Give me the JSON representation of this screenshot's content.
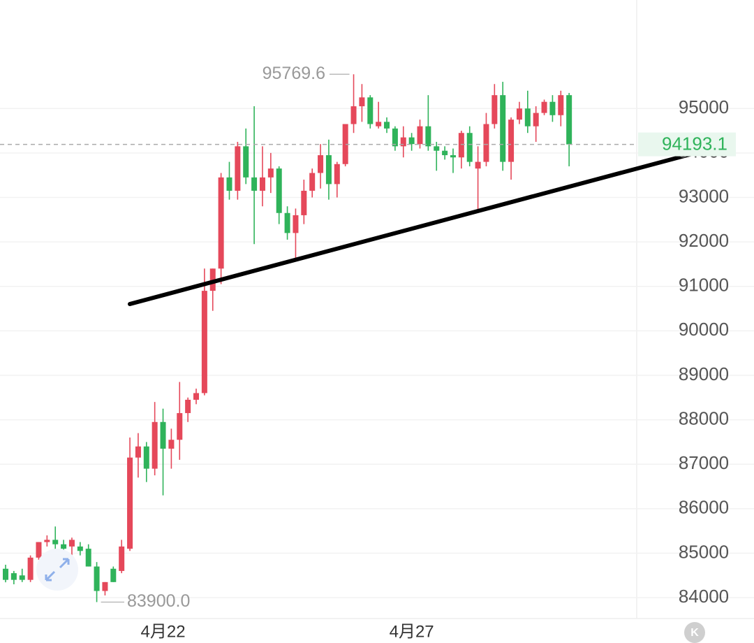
{
  "chart_data": {
    "type": "candlestick",
    "categories": [
      null,
      null,
      null,
      null,
      null,
      null,
      null,
      null,
      null,
      null,
      null,
      null,
      null,
      null,
      null,
      null,
      null,
      null,
      null,
      "4月22",
      null,
      null,
      null,
      null,
      null,
      null,
      null,
      null,
      null,
      null,
      null,
      null,
      null,
      null,
      null,
      null,
      null,
      null,
      null,
      null,
      null,
      null,
      null,
      null,
      null,
      null,
      null,
      null,
      null,
      "4月27",
      null,
      null,
      null,
      null,
      null,
      null,
      null,
      null,
      null,
      null,
      null,
      null,
      null,
      null,
      null,
      null,
      null,
      null,
      null
    ],
    "open": [
      84650,
      84550,
      84500,
      84400,
      84900,
      85250,
      85300,
      85200,
      85150,
      85150,
      85100,
      84700,
      84150,
      84650,
      84600,
      85100,
      87150,
      87400,
      86900,
      87950,
      87350,
      87550,
      88150,
      88450,
      88600,
      90900,
      91400,
      93450,
      93150,
      94150,
      93450,
      93150,
      93450,
      93650,
      92650,
      92200,
      92600,
      93150,
      93550,
      93950,
      93300,
      93750,
      94650,
      95050,
      95250,
      94600,
      94700,
      94550,
      94150,
      94350,
      94200,
      94600,
      94150,
      94050,
      93950,
      93900,
      94450,
      93650,
      93800,
      94650,
      95300,
      93800,
      94750,
      95000,
      94600,
      94900,
      95150,
      94850,
      95300
    ],
    "high": [
      84740,
      84600,
      84650,
      84950,
      85250,
      85400,
      85600,
      85300,
      85350,
      85250,
      85200,
      84800,
      84350,
      84700,
      85300,
      87600,
      87700,
      87500,
      88400,
      88250,
      87800,
      88850,
      88500,
      88700,
      91400,
      91400,
      93550,
      93800,
      94250,
      94550,
      95050,
      94150,
      94000,
      93700,
      92800,
      92750,
      93400,
      93650,
      94200,
      94300,
      93800,
      94650,
      95769.6,
      95550,
      95300,
      95150,
      94800,
      94600,
      94600,
      94450,
      94750,
      95300,
      94250,
      94150,
      94100,
      94500,
      94600,
      94150,
      94900,
      95550,
      95600,
      94800,
      95150,
      95400,
      95050,
      95200,
      95300,
      95400,
      95350
    ],
    "low": [
      84345,
      84300,
      84350,
      84350,
      84850,
      85150,
      85000,
      84750,
      84850,
      84950,
      84700,
      83900,
      84050,
      84350,
      84550,
      85050,
      86700,
      86600,
      86750,
      86300,
      86900,
      87100,
      87950,
      88350,
      88550,
      90450,
      91050,
      92950,
      92950,
      93300,
      91950,
      92800,
      93100,
      92400,
      92050,
      91600,
      92400,
      93000,
      93200,
      92950,
      93000,
      93700,
      94450,
      94700,
      94550,
      94550,
      94450,
      94050,
      93900,
      94050,
      94100,
      94050,
      93600,
      93850,
      93550,
      93650,
      93700,
      92700,
      93700,
      94550,
      93600,
      93400,
      94650,
      94450,
      94250,
      94850,
      94700,
      94600,
      93700
    ],
    "close": [
      84400,
      84400,
      84400,
      84900,
      85250,
      85300,
      85200,
      85100,
      85300,
      85050,
      84700,
      84150,
      84350,
      84350,
      85150,
      87150,
      87400,
      86900,
      87950,
      87350,
      87550,
      88150,
      88450,
      88600,
      90900,
      91400,
      93450,
      93150,
      94150,
      93450,
      93150,
      93450,
      93650,
      92650,
      92200,
      92600,
      93150,
      93550,
      93950,
      93300,
      93750,
      94650,
      95050,
      95250,
      94650,
      94700,
      94550,
      94150,
      94350,
      94200,
      94600,
      94150,
      94050,
      93950,
      93900,
      94450,
      93800,
      93800,
      94650,
      95300,
      93800,
      94750,
      95000,
      94600,
      94900,
      95150,
      94850,
      95300,
      94193.1
    ],
    "up_color": "#e5485a",
    "down_color": "#2fb35a",
    "ylim": [
      83530,
      97440
    ],
    "yticks": [
      84000,
      85000,
      86000,
      87000,
      88000,
      89000,
      90000,
      91000,
      92000,
      93000,
      94000,
      95000
    ],
    "grid": true,
    "high_label": 95769.6,
    "low_label": {
      "value": 83900,
      "label": "83900.0"
    },
    "last_price": 94193.1
  },
  "button": {
    "label": "K"
  }
}
